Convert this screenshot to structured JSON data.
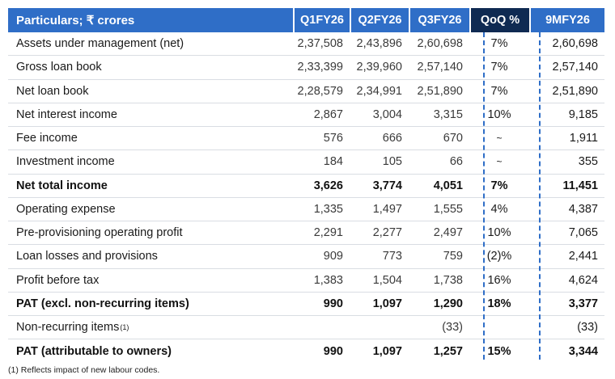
{
  "header": [
    "Particulars; ₹ crores",
    "Q1FY26",
    "Q2FY26",
    "Q3FY26",
    "QoQ %",
    "9MFY26"
  ],
  "rows": [
    {
      "label": "Assets under management (net)",
      "q1": "2,37,508",
      "q2": "2,43,896",
      "q3": "2,60,698",
      "qoq": "7%",
      "nine": "2,60,698"
    },
    {
      "label": "Gross loan book",
      "q1": "2,33,399",
      "q2": "2,39,960",
      "q3": "2,57,140",
      "qoq": "7%",
      "nine": "2,57,140"
    },
    {
      "label": "Net loan book",
      "q1": "2,28,579",
      "q2": "2,34,991",
      "q3": "2,51,890",
      "qoq": "7%",
      "nine": "2,51,890"
    },
    {
      "label": "Net interest income",
      "q1": "2,867",
      "q2": "3,004",
      "q3": "3,315",
      "qoq": "10%",
      "nine": "9,185"
    },
    {
      "label": "Fee income",
      "q1": "576",
      "q2": "666",
      "q3": "670",
      "qoq": "~",
      "nine": "1,911"
    },
    {
      "label": "Investment income",
      "q1": "184",
      "q2": "105",
      "q3": "66",
      "qoq": "~",
      "nine": "355"
    },
    {
      "label": "Net total income",
      "q1": "3,626",
      "q2": "3,774",
      "q3": "4,051",
      "qoq": "7%",
      "nine": "11,451"
    },
    {
      "label": "Operating expense",
      "q1": "1,335",
      "q2": "1,497",
      "q3": "1,555",
      "qoq": "4%",
      "nine": "4,387"
    },
    {
      "label": "Pre-provisioning operating profit",
      "q1": "2,291",
      "q2": "2,277",
      "q3": "2,497",
      "qoq": "10%",
      "nine": "7,065"
    },
    {
      "label": "Loan losses and provisions",
      "q1": "909",
      "q2": "773",
      "q3": "759",
      "qoq": "(2)%",
      "nine": "2,441"
    },
    {
      "label": "Profit before tax",
      "q1": "1,383",
      "q2": "1,504",
      "q3": "1,738",
      "qoq": "16%",
      "nine": "4,624"
    },
    {
      "label": "PAT (excl. non-recurring items)",
      "q1": "990",
      "q2": "1,097",
      "q3": "1,290",
      "qoq": "18%",
      "nine": "3,377"
    },
    {
      "label": "Non-recurring items",
      "sup": "(1)",
      "q1": "",
      "q2": "",
      "q3": "(33)",
      "qoq": "",
      "nine": "(33)"
    },
    {
      "label": "PAT (attributable to owners)",
      "q1": "990",
      "q2": "1,097",
      "q3": "1,257",
      "qoq": "15%",
      "nine": "3,344"
    }
  ],
  "footnote": "(1) Reflects impact of new labour codes."
}
